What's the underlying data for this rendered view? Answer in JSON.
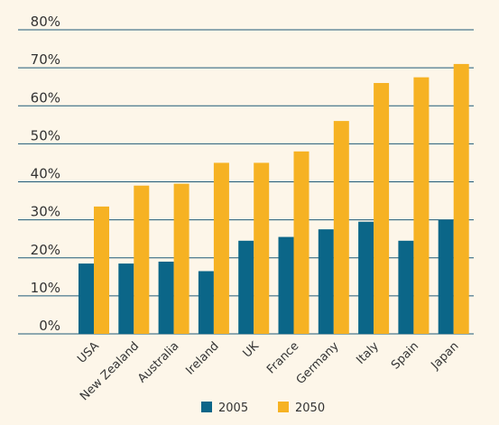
{
  "colors": {
    "background": "#fdf6e9",
    "grid": "#1f5a78",
    "s2005": "#0b6688",
    "s2050": "#f6b223"
  },
  "chart_data": {
    "type": "bar",
    "title": "",
    "xlabel": "",
    "ylabel": "",
    "ylim": [
      0,
      80
    ],
    "yticks": [
      "0%",
      "10%",
      "20%",
      "30%",
      "40%",
      "50%",
      "60%",
      "70%",
      "80%"
    ],
    "grid": true,
    "legend_position": "bottom",
    "categories": [
      "USA",
      "New Zealand",
      "Australia",
      "Ireland",
      "UK",
      "France",
      "Germany",
      "Italy",
      "Spain",
      "Japan"
    ],
    "series": [
      {
        "name": "2005",
        "values": [
          18.5,
          18.5,
          19,
          16.5,
          24.5,
          25.5,
          27.5,
          29.5,
          24.5,
          30
        ]
      },
      {
        "name": "2050",
        "values": [
          33.5,
          39,
          39.5,
          45,
          45,
          48,
          56,
          66,
          67.5,
          71
        ]
      }
    ]
  }
}
